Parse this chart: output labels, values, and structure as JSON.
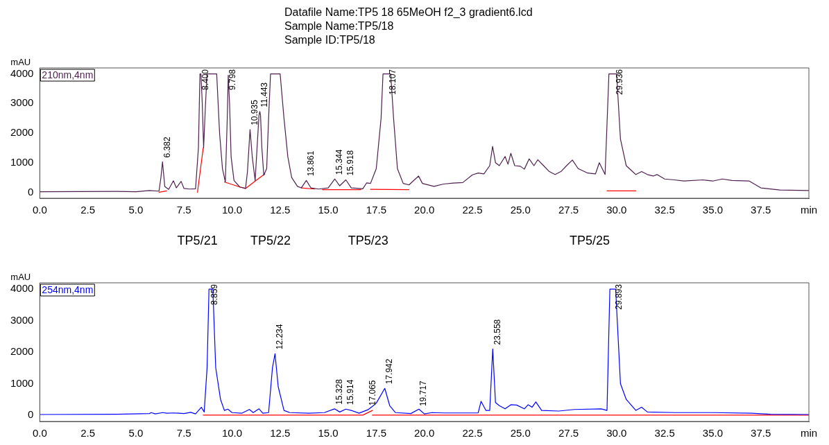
{
  "chart_data": [
    {
      "type": "line",
      "title": "Datafile Name:TP5 18 65MeOH f2_3 gradient6.lcd",
      "subtitle": "Sample Name:TP5/18\nSample ID:TP5/18",
      "ylabel": "mAU",
      "xlim": [
        0,
        40
      ],
      "ylim": [
        -200,
        4200
      ],
      "xticks": [
        {
          "value": 0,
          "label": "0.0"
        },
        2.5,
        {
          "value": 5,
          "label": "5.0"
        },
        7.5,
        {
          "value": 10,
          "label": "10.0"
        },
        12.5,
        {
          "value": 15,
          "label": "15.0"
        },
        17.5,
        {
          "value": 20,
          "label": "20.0"
        },
        22.5,
        {
          "value": 25,
          "label": "25.0"
        },
        27.5,
        {
          "value": 30,
          "label": "30.0"
        },
        32.5,
        {
          "value": 35,
          "label": "35.0"
        },
        37.5,
        {
          "value": 40,
          "label": "min"
        }
      ],
      "yticks": [
        0,
        1000,
        2000,
        3000,
        4000
      ],
      "grid": false,
      "legend": "top left",
      "marker": "none",
      "series": [
        {
          "name": "210nm,4nm",
          "color": "#4d1f4d",
          "x": [
            0,
            4,
            5,
            5.7,
            6.2,
            6.3,
            6.382,
            6.5,
            6.7,
            6.95,
            7.1,
            7.35,
            7.5,
            7.8,
            8.1,
            8.25,
            8.33,
            8.38,
            8.45,
            8.52,
            8.62,
            8.7,
            9.2,
            9.35,
            9.5,
            9.65,
            9.75,
            9.8,
            9.87,
            9.95,
            10.1,
            10.4,
            10.7,
            10.8,
            10.935,
            11.05,
            11.2,
            11.3,
            11.4,
            11.443,
            11.48,
            11.55,
            11.65,
            11.8,
            11.9,
            12.0,
            12.5,
            12.7,
            12.9,
            13.1,
            13.4,
            13.6,
            13.861,
            14.1,
            14.5,
            15.0,
            15.344,
            15.6,
            15.918,
            16.2,
            16.8,
            17.0,
            17.2,
            17.5,
            17.75,
            17.85,
            18.25,
            18.4,
            18.6,
            18.9,
            19.2,
            19.7,
            19.9,
            20.5,
            21.0,
            21.5,
            22.0,
            22.5,
            22.8,
            23.1,
            23.4,
            23.55,
            23.7,
            23.9,
            24.2,
            24.35,
            24.5,
            24.7,
            25.0,
            25.2,
            25.45,
            25.7,
            25.9,
            26.2,
            26.5,
            26.8,
            27.1,
            27.4,
            27.7,
            28.0,
            28.5,
            28.9,
            29.1,
            29.4,
            29.6,
            30.0,
            30.2,
            30.5,
            30.8,
            31.0,
            31.3,
            31.6,
            31.9,
            32.1,
            32.5,
            33.0,
            33.5,
            34.5,
            35.0,
            35.5,
            36.0,
            36.9,
            37.5,
            38.5,
            40
          ],
          "values": [
            20,
            30,
            20,
            60,
            40,
            500,
            1030,
            200,
            100,
            390,
            150,
            370,
            130,
            110,
            120,
            1500,
            4000,
            4000,
            3000,
            1500,
            3000,
            4000,
            4000,
            2000,
            800,
            350,
            2500,
            3950,
            3000,
            1200,
            400,
            180,
            130,
            700,
            2120,
            1200,
            400,
            1500,
            2600,
            2730,
            2600,
            1500,
            580,
            800,
            2500,
            4000,
            4000,
            2500,
            1200,
            500,
            200,
            150,
            400,
            150,
            110,
            150,
            450,
            220,
            420,
            150,
            120,
            320,
            300,
            800,
            2500,
            4000,
            4000,
            2500,
            800,
            300,
            250,
            550,
            300,
            200,
            280,
            310,
            330,
            590,
            650,
            620,
            900,
            1550,
            1000,
            900,
            1210,
            950,
            1320,
            900,
            880,
            780,
            1130,
            900,
            1100,
            900,
            700,
            600,
            700,
            900,
            1090,
            800,
            650,
            620,
            1000,
            600,
            4000,
            4000,
            1800,
            900,
            720,
            600,
            700,
            600,
            550,
            600,
            450,
            420,
            380,
            420,
            380,
            450,
            400,
            380,
            150,
            80,
            60
          ]
        },
        {
          "type": "line",
          "color": "#ff0000",
          "x": [
            6.2,
            6.6
          ],
          "values": [
            0,
            50
          ]
        },
        {
          "type": "line",
          "color": "#ff0000",
          "x": [
            8.2,
            8.5
          ],
          "values": [
            0,
            1500
          ]
        },
        {
          "type": "line",
          "color": "#ff0000",
          "x": [
            9.6,
            10.4,
            10.7,
            11.2,
            11.7
          ],
          "values": [
            350,
            180,
            130,
            380,
            620
          ]
        },
        {
          "type": "line",
          "color": "#ff0000",
          "x": [
            13.6,
            14.3
          ],
          "values": [
            150,
            110
          ]
        },
        {
          "type": "line",
          "color": "#ff0000",
          "x": [
            14.7,
            16.7
          ],
          "values": [
            90,
            90
          ]
        },
        {
          "type": "line",
          "color": "#ff0000",
          "x": [
            17.2,
            19.2
          ],
          "values": [
            100,
            90
          ]
        },
        {
          "type": "line",
          "color": "#ff0000",
          "x": [
            29.5,
            31.0
          ],
          "values": [
            50,
            50
          ]
        }
      ],
      "annotations": [
        {
          "text": "6.382",
          "x": 6.382,
          "y": 1030
        },
        {
          "text": "8.400",
          "x": 8.4,
          "y": 4000
        },
        {
          "text": "9.798",
          "x": 9.798,
          "y": 3950
        },
        {
          "text": "10.935",
          "x": 10.935,
          "y": 2120
        },
        {
          "text": "11.443",
          "x": 11.443,
          "y": 2730
        },
        {
          "text": "13.861",
          "x": 13.861,
          "y": 400
        },
        {
          "text": "15.344",
          "x": 15.344,
          "y": 450
        },
        {
          "text": "15.918",
          "x": 15.918,
          "y": 420
        },
        {
          "text": "18.107",
          "x": 18.107,
          "y": 4000
        },
        {
          "text": "29.936",
          "x": 29.936,
          "y": 4000
        },
        "TP5/21",
        "TP5/22",
        "TP5/23",
        "TP5/25"
      ]
    },
    {
      "type": "line",
      "ylabel": "mAU",
      "xlim": [
        0,
        40
      ],
      "ylim": [
        -200,
        4200
      ],
      "xticks": [
        {
          "value": 0,
          "label": "0.0"
        },
        2.5,
        {
          "value": 5,
          "label": "5.0"
        },
        7.5,
        {
          "value": 10,
          "label": "10.0"
        },
        12.5,
        {
          "value": 15,
          "label": "15.0"
        },
        17.5,
        {
          "value": 20,
          "label": "20.0"
        },
        22.5,
        {
          "value": 25,
          "label": "25.0"
        },
        27.5,
        {
          "value": 30,
          "label": "30.0"
        },
        32.5,
        {
          "value": 35,
          "label": "35.0"
        },
        37.5,
        {
          "value": 40,
          "label": "min"
        }
      ],
      "yticks": [
        0,
        1000,
        2000,
        3000,
        4000
      ],
      "grid": false,
      "legend": "top left",
      "marker": "none",
      "series": [
        {
          "name": "254nm,4nm",
          "color": "#0000ff",
          "x": [
            0,
            4,
            5.7,
            5.8,
            6.0,
            6.4,
            6.6,
            7.0,
            7.5,
            7.85,
            8.1,
            8.4,
            8.55,
            8.7,
            8.8,
            9.0,
            9.15,
            9.4,
            9.6,
            9.78,
            10.0,
            10.5,
            10.9,
            11.1,
            11.4,
            11.6,
            11.9,
            12.1,
            12.234,
            12.4,
            12.7,
            13.0,
            14.0,
            14.8,
            15.328,
            15.6,
            15.914,
            16.2,
            16.6,
            17.065,
            17.3,
            17.5,
            17.942,
            18.2,
            18.5,
            19.3,
            19.717,
            20.0,
            20.4,
            21.0,
            22.8,
            22.95,
            23.2,
            23.4,
            23.558,
            23.7,
            23.9,
            24.2,
            24.5,
            24.8,
            25.2,
            25.4,
            25.6,
            25.8,
            26.1,
            27.0,
            27.8,
            29.2,
            29.5,
            29.65,
            29.95,
            30.2,
            30.5,
            31.0,
            31.3,
            31.6,
            33.0,
            35.0,
            37.0,
            38.0,
            40
          ],
          "values": [
            20,
            30,
            50,
            80,
            40,
            80,
            60,
            70,
            50,
            90,
            40,
            250,
            100,
            1500,
            4000,
            4000,
            1500,
            500,
            150,
            190,
            80,
            60,
            180,
            80,
            200,
            60,
            80,
            1500,
            1950,
            900,
            150,
            80,
            60,
            80,
            200,
            100,
            190,
            150,
            60,
            170,
            280,
            380,
            850,
            300,
            80,
            50,
            190,
            40,
            80,
            70,
            70,
            440,
            150,
            150,
            2100,
            400,
            300,
            200,
            330,
            320,
            200,
            330,
            250,
            420,
            150,
            130,
            180,
            200,
            150,
            4000,
            4000,
            1000,
            500,
            150,
            250,
            100,
            80,
            80,
            60,
            30,
            20
          ]
        },
        {
          "type": "line",
          "color": "#ff0000",
          "x": [
            8.5,
            16.8,
            17.3
          ],
          "values": [
            0,
            0,
            150
          ]
        },
        {
          "type": "line",
          "color": "#ff0000",
          "x": [
            17.3,
            40
          ],
          "values": [
            0,
            0
          ]
        }
      ],
      "annotations": [
        {
          "text": "8.859",
          "x": 8.859,
          "y": 4000
        },
        {
          "text": "12.234",
          "x": 12.234,
          "y": 1950
        },
        {
          "text": "15.328",
          "x": 15.328,
          "y": 200
        },
        {
          "text": "15.914",
          "x": 15.914,
          "y": 190
        },
        {
          "text": "17.065",
          "x": 17.065,
          "y": 170
        },
        {
          "text": "17.942",
          "x": 17.942,
          "y": 850
        },
        {
          "text": "19.717",
          "x": 19.717,
          "y": 150
        },
        {
          "text": "23.558",
          "x": 23.558,
          "y": 2100
        },
        {
          "text": "29.893",
          "x": 29.893,
          "y": 4000
        }
      ]
    }
  ]
}
